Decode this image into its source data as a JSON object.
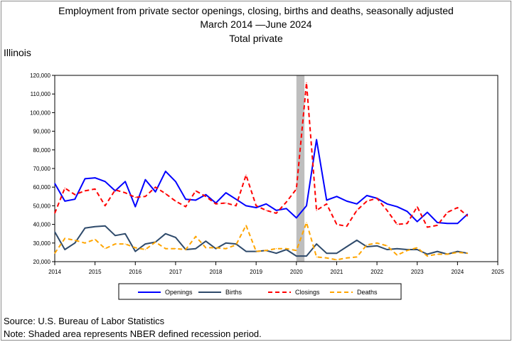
{
  "header": {
    "title": "Employment from private sector openings, closing, births and deaths, seasonally adjusted",
    "title_line2_a": "March 2014",
    "title_line2_b": "June 2024",
    "title_line3": "Total private",
    "subtitle": "Illinois"
  },
  "footer": {
    "source": "Source: U.S. Bureau of Labor Statistics",
    "note": "Note: Shaded area represents NBER defined recession period."
  },
  "chart_data": {
    "type": "line",
    "xlim": [
      2014,
      2025
    ],
    "ylim": [
      20000,
      120000
    ],
    "x_ticks": [
      2014,
      2015,
      2016,
      2017,
      2018,
      2019,
      2020,
      2021,
      2022,
      2023,
      2024,
      2025
    ],
    "y_ticks": [
      20000,
      30000,
      40000,
      50000,
      60000,
      70000,
      80000,
      90000,
      100000,
      110000,
      120000
    ],
    "y_tick_labels": [
      "20,000",
      "30,000",
      "40,000",
      "50,000",
      "60,000",
      "70,000",
      "80,000",
      "90,000",
      "100,000",
      "110,000",
      "120,000"
    ],
    "grid": false,
    "legend_position": "bottom",
    "recession": {
      "start": 2020.0,
      "end": 2020.2,
      "color": "#bebebe"
    },
    "x": [
      2014.0,
      2014.25,
      2014.5,
      2014.75,
      2015.0,
      2015.25,
      2015.5,
      2015.75,
      2016.0,
      2016.25,
      2016.5,
      2016.75,
      2017.0,
      2017.25,
      2017.5,
      2017.75,
      2018.0,
      2018.25,
      2018.5,
      2018.75,
      2019.0,
      2019.25,
      2019.5,
      2019.75,
      2020.0,
      2020.25,
      2020.5,
      2020.75,
      2021.0,
      2021.25,
      2021.5,
      2021.75,
      2022.0,
      2022.25,
      2022.5,
      2022.75,
      2023.0,
      2023.25,
      2023.5,
      2023.75,
      2024.0,
      2024.25
    ],
    "series": [
      {
        "name": "Openings",
        "color": "#0000ff",
        "dash": "",
        "width": 2,
        "values": [
          62000,
          52500,
          53500,
          64500,
          65000,
          63000,
          58000,
          63000,
          49500,
          64000,
          57500,
          68500,
          63000,
          53500,
          53000,
          56000,
          51500,
          57000,
          53500,
          50000,
          49000,
          51000,
          47500,
          48500,
          43500,
          50000,
          85500,
          53000,
          55000,
          52500,
          51000,
          55500,
          54000,
          51000,
          49500,
          47000,
          41500,
          46500,
          41000,
          40500,
          40500,
          45500
        ]
      },
      {
        "name": "Births",
        "color": "#2e4a6b",
        "dash": "",
        "width": 2,
        "values": [
          36000,
          26500,
          30000,
          38000,
          38800,
          39200,
          34000,
          35000,
          25500,
          29500,
          30500,
          35000,
          33000,
          26500,
          27000,
          31000,
          27000,
          30000,
          29500,
          25500,
          25500,
          26000,
          24500,
          26500,
          23000,
          23000,
          29500,
          24500,
          24500,
          28000,
          31500,
          28000,
          28500,
          26500,
          27000,
          26500,
          26500,
          24000,
          25500,
          24000,
          25500,
          24500
        ]
      },
      {
        "name": "Closings",
        "color": "#ff0000",
        "dash": "6,4",
        "width": 2,
        "values": [
          46000,
          59500,
          56000,
          58000,
          59000,
          50000,
          58500,
          57000,
          54500,
          55000,
          60000,
          56500,
          52500,
          49500,
          58000,
          55000,
          51000,
          51500,
          50000,
          66500,
          50000,
          47500,
          46000,
          52000,
          59000,
          116000,
          47500,
          51000,
          40000,
          39000,
          47500,
          52500,
          54000,
          47500,
          40000,
          40500,
          49500,
          38500,
          39500,
          46500,
          49000,
          44500
        ]
      },
      {
        "name": "Deaths",
        "color": "#ffa500",
        "dash": "6,4",
        "width": 2,
        "values": [
          24500,
          32500,
          31500,
          30000,
          32000,
          27000,
          29500,
          29500,
          27500,
          26500,
          30500,
          27000,
          27000,
          26500,
          33500,
          27500,
          27500,
          27000,
          29000,
          39500,
          25500,
          26000,
          27000,
          27000,
          26000,
          41000,
          22500,
          22000,
          21000,
          22000,
          22500,
          29000,
          30000,
          28500,
          23500,
          26000,
          27500,
          23000,
          24000,
          24000,
          25000,
          24500
        ]
      }
    ]
  }
}
